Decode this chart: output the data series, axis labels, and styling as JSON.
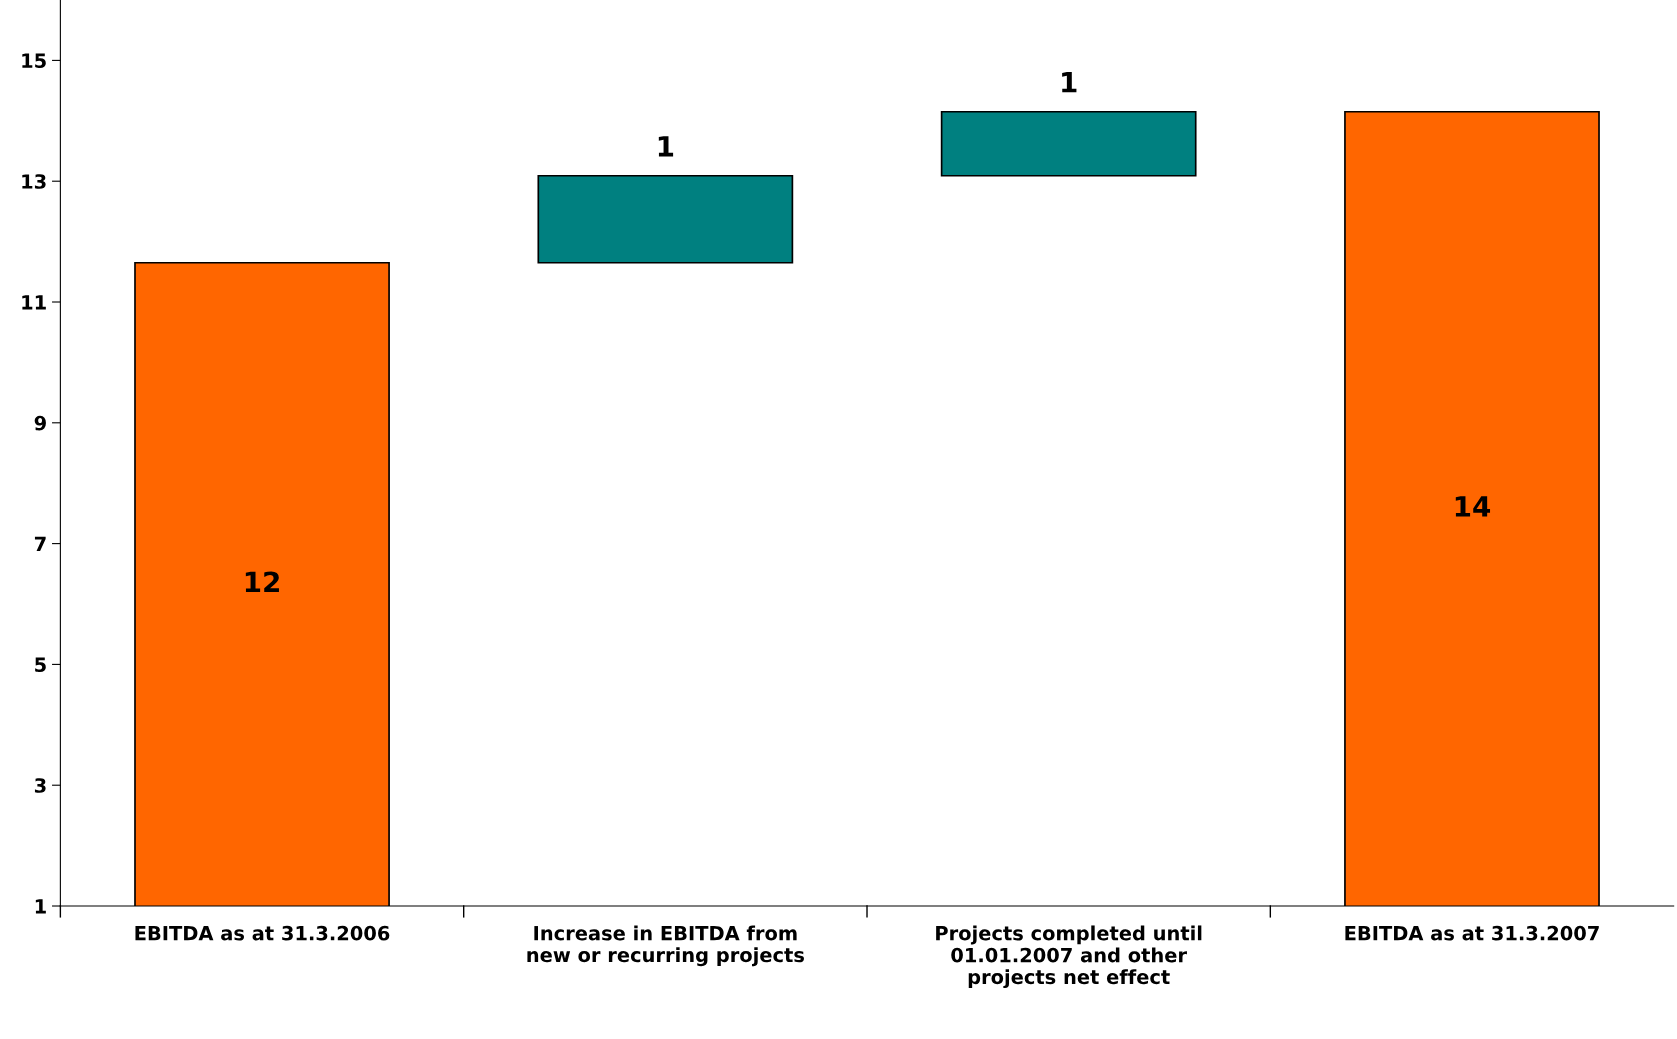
{
  "chart_data": {
    "type": "bar",
    "categories": [
      "EBITDA as at 31.3.2006",
      "Increase in EBITDA from new or recurring projects",
      "Projects completed until 01.01.2007 and other projects net effect",
      "EBITDA as at 31.3.2007"
    ],
    "values": [
      11.65,
      1.44,
      1.06,
      14.15
    ],
    "base": [
      null,
      11.65,
      13.09,
      null
    ],
    "colors": [
      "#ff6600",
      "#008080",
      "#008080",
      "#ff6600"
    ],
    "value_labels": [
      "12",
      "1",
      "1",
      "14"
    ],
    "ylim": [
      1,
      16
    ],
    "yticks": [
      1,
      3,
      5,
      7,
      9,
      11,
      13,
      15
    ],
    "grid": false,
    "legend": false
  }
}
